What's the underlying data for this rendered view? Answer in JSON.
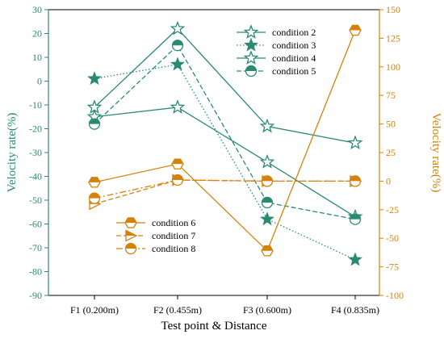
{
  "chart_data": {
    "type": "line",
    "categories": [
      "F1 (0.200m)",
      "F2 (0.455m)",
      "F3 (0.600m)",
      "F4 (0.835m)"
    ],
    "xlabel": "Test point & Distance",
    "ylabel_left": "Velocity rate(%)",
    "ylabel_right": "Velocity rate(%)",
    "ylim_left": [
      -90,
      30
    ],
    "ylim_right": [
      -100,
      150
    ],
    "yticks_left": [
      30,
      20,
      10,
      0,
      -10,
      -20,
      -30,
      -40,
      -50,
      -60,
      -70,
      -80,
      -90
    ],
    "yticks_right": [
      150,
      125,
      100,
      75,
      50,
      25,
      0,
      -25,
      -50,
      -75,
      -100
    ],
    "series": [
      {
        "name": "condition 2",
        "axis": "left",
        "values": [
          -11,
          22,
          -19,
          -26
        ],
        "color": "#2a8b72",
        "line": "solid",
        "marker": "star-open"
      },
      {
        "name": "condition 3",
        "axis": "left",
        "values": [
          1,
          7,
          -58,
          -75
        ],
        "color": "#2a8b72",
        "line": "dotted",
        "marker": "star-filled"
      },
      {
        "name": "condition 4",
        "axis": "left",
        "values": [
          -15,
          -11,
          -34,
          -57
        ],
        "color": "#2a8b72",
        "line": "solid",
        "marker": "star-open"
      },
      {
        "name": "condition 5",
        "axis": "left",
        "values": [
          -18,
          15,
          -51,
          -58
        ],
        "color": "#2a8b72",
        "line": "dashed",
        "marker": "circle-half"
      },
      {
        "name": "condition 6",
        "axis": "right",
        "values": [
          -1,
          15,
          -61,
          132
        ],
        "color": "#d4820a",
        "line": "solid",
        "marker": "hexagon-half"
      },
      {
        "name": "condition 7",
        "axis": "right",
        "values": [
          -20,
          1,
          0,
          0
        ],
        "color": "#d4820a",
        "line": "dashed",
        "marker": "triangle-right"
      },
      {
        "name": "condition 8",
        "axis": "right",
        "values": [
          -15,
          1,
          0,
          0
        ],
        "color": "#d4820a",
        "line": "dashdot",
        "marker": "circle-half"
      }
    ],
    "legends": [
      {
        "position": "top-right",
        "items": [
          "condition 2",
          "condition 3",
          "condition 4",
          "condition 5"
        ]
      },
      {
        "position": "bottom-left",
        "items": [
          "condition 6",
          "condition 7",
          "condition 8"
        ]
      }
    ],
    "left_axis_color": "#2a8b72",
    "right_axis_color": "#d4820a",
    "grid": false
  }
}
